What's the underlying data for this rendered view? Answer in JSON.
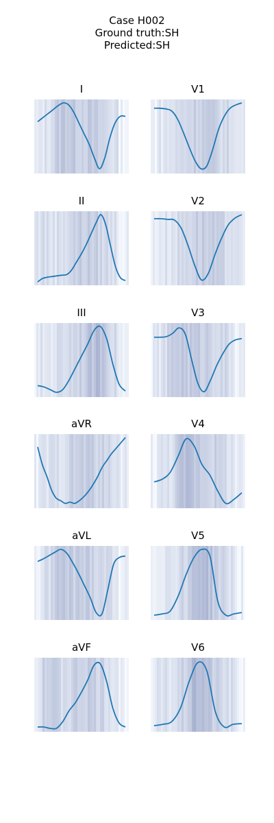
{
  "header": {
    "case": "Case H002",
    "ground_truth": "Ground truth:SH",
    "predicted": "Predicted:SH"
  },
  "colors": {
    "line": "#1f77b4",
    "heat_low": "#f7fbff",
    "heat_high": "#9aa5c8"
  },
  "chart_data": [
    {
      "type": "line",
      "title": "I",
      "y": [
        0.72,
        0.78,
        0.84,
        0.9,
        0.96,
        1.0,
        0.97,
        0.86,
        0.7,
        0.54,
        0.38,
        0.18,
        0.02,
        0.18,
        0.48,
        0.7,
        0.8,
        0.8
      ],
      "grid": false,
      "axes": false
    },
    {
      "type": "line",
      "title": "V1",
      "y": [
        0.92,
        0.92,
        0.91,
        0.88,
        0.76,
        0.56,
        0.34,
        0.14,
        0.02,
        0.06,
        0.3,
        0.6,
        0.8,
        0.92,
        0.97,
        1.0
      ],
      "grid": false,
      "axes": false
    },
    {
      "type": "line",
      "title": "II",
      "y": [
        0.0,
        0.05,
        0.07,
        0.08,
        0.09,
        0.1,
        0.11,
        0.18,
        0.3,
        0.42,
        0.56,
        0.72,
        0.88,
        1.0,
        0.84,
        0.52,
        0.22,
        0.06,
        0.02
      ],
      "grid": false,
      "axes": false
    },
    {
      "type": "line",
      "title": "V2",
      "y": [
        0.94,
        0.94,
        0.93,
        0.92,
        0.8,
        0.55,
        0.25,
        0.03,
        0.12,
        0.4,
        0.65,
        0.85,
        0.95,
        1.0
      ],
      "grid": false,
      "axes": false
    },
    {
      "type": "line",
      "title": "III",
      "y": [
        0.12,
        0.1,
        0.06,
        0.02,
        0.06,
        0.2,
        0.38,
        0.56,
        0.74,
        0.94,
        1.0,
        0.82,
        0.44,
        0.14,
        0.04
      ],
      "grid": false,
      "axes": false
    },
    {
      "type": "line",
      "title": "V3",
      "y": [
        0.84,
        0.84,
        0.85,
        0.9,
        0.98,
        0.88,
        0.5,
        0.15,
        0.03,
        0.2,
        0.42,
        0.6,
        0.74,
        0.8,
        0.82
      ],
      "grid": false,
      "axes": false
    },
    {
      "type": "line",
      "title": "aVR",
      "y": [
        0.86,
        0.6,
        0.42,
        0.22,
        0.1,
        0.06,
        0.02,
        0.04,
        0.02,
        0.06,
        0.12,
        0.2,
        0.3,
        0.42,
        0.56,
        0.66,
        0.76,
        0.84,
        0.92,
        1.0
      ],
      "grid": false,
      "axes": false
    },
    {
      "type": "line",
      "title": "V4",
      "y": [
        0.34,
        0.38,
        0.48,
        0.72,
        0.98,
        0.88,
        0.6,
        0.44,
        0.2,
        0.02,
        0.08,
        0.18
      ],
      "grid": false,
      "axes": false
    },
    {
      "type": "line",
      "title": "aVL",
      "y": [
        0.82,
        0.86,
        0.91,
        0.96,
        1.0,
        0.94,
        0.8,
        0.64,
        0.46,
        0.28,
        0.06,
        0.04,
        0.4,
        0.78,
        0.88,
        0.9
      ],
      "grid": false,
      "axes": false
    },
    {
      "type": "line",
      "title": "V5",
      "y": [
        0.02,
        0.04,
        0.08,
        0.3,
        0.62,
        0.88,
        1.0,
        0.9,
        0.22,
        0.02,
        0.04,
        0.06
      ],
      "grid": false,
      "axes": false
    },
    {
      "type": "line",
      "title": "aVF",
      "y": [
        0.02,
        0.02,
        0.0,
        0.0,
        0.1,
        0.26,
        0.38,
        0.54,
        0.72,
        0.94,
        0.96,
        0.7,
        0.3,
        0.08,
        0.02
      ],
      "grid": false,
      "axes": false
    },
    {
      "type": "line",
      "title": "V6",
      "y": [
        0.04,
        0.06,
        0.1,
        0.3,
        0.7,
        0.98,
        0.86,
        0.24,
        0.02,
        0.06,
        0.07
      ],
      "grid": false,
      "axes": false
    }
  ]
}
